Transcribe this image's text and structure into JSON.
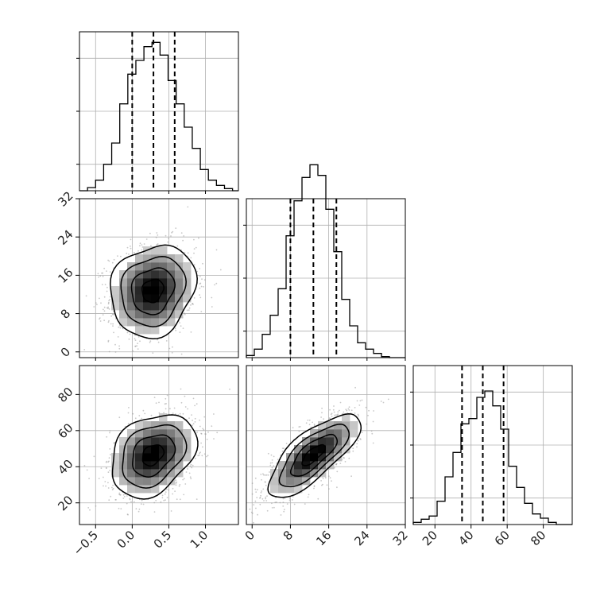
{
  "chart_data": {
    "type": "corner",
    "grid": true,
    "parameters": [
      {
        "range": [
          -0.72,
          1.45
        ],
        "ticks": [
          -0.5,
          0.0,
          0.5,
          1.0
        ],
        "tick_labels": [
          "−0.5",
          "0.0",
          "0.5",
          "1.0"
        ],
        "quantiles": [
          0.0,
          0.29,
          0.58
        ],
        "hist_bins_edges": [
          -0.72,
          -0.61,
          -0.5,
          -0.39,
          -0.28,
          -0.17,
          -0.06,
          0.05,
          0.16,
          0.27,
          0.38,
          0.49,
          0.6,
          0.71,
          0.82,
          0.93,
          1.04,
          1.15,
          1.26,
          1.37,
          1.45
        ],
        "hist_counts": [
          0,
          3,
          10,
          25,
          45,
          82,
          110,
          123,
          136,
          140,
          128,
          104,
          82,
          60,
          40,
          20,
          10,
          5,
          2,
          0
        ]
      },
      {
        "range": [
          -1.2,
          32.0
        ],
        "ticks": [
          0,
          8,
          16,
          24,
          32
        ],
        "tick_labels": [
          "0",
          "8",
          "16",
          "24",
          "32"
        ],
        "quantiles": [
          8.0,
          12.8,
          17.6
        ],
        "hist_bins_edges": [
          -1.2,
          0.46,
          2.12,
          3.78,
          5.44,
          7.1,
          8.76,
          10.42,
          12.08,
          13.74,
          15.4,
          17.06,
          18.72,
          20.38,
          22.04,
          23.7,
          25.36,
          27.02,
          28.68,
          30.34,
          32.0
        ],
        "hist_counts": [
          2,
          8,
          22,
          40,
          65,
          115,
          148,
          170,
          182,
          172,
          140,
          100,
          55,
          30,
          14,
          8,
          4,
          1,
          0,
          0
        ]
      },
      {
        "range": [
          8.0,
          96.0
        ],
        "ticks": [
          20,
          40,
          60,
          80
        ],
        "tick_labels": [
          "20",
          "40",
          "60",
          "80"
        ],
        "quantiles": [
          35.0,
          46.5,
          58.0
        ],
        "hist_bins_edges": [
          8.0,
          12.4,
          16.8,
          21.2,
          25.6,
          30.0,
          34.4,
          38.8,
          43.2,
          47.6,
          52.0,
          56.4,
          60.8,
          65.2,
          69.6,
          74.0,
          78.4,
          82.8,
          87.2,
          91.6,
          96.0
        ],
        "hist_counts": [
          2,
          5,
          8,
          22,
          45,
          68,
          95,
          100,
          120,
          126,
          112,
          90,
          55,
          35,
          20,
          10,
          6,
          2,
          0,
          0
        ]
      }
    ],
    "hist_ylim": [
      0,
      150
    ],
    "hist_y_ticks": [
      25,
      75,
      125
    ],
    "pairs": [
      {
        "x": 0,
        "y": 1,
        "mean": [
          0.28,
          12.8
        ],
        "sigma": [
          0.29,
          4.8
        ],
        "rho": 0.15,
        "contour_sigmas": [
          0.5,
          1.0,
          1.5,
          2.0
        ]
      },
      {
        "x": 0,
        "y": 2,
        "mean": [
          0.28,
          46.5
        ],
        "sigma": [
          0.29,
          11.5
        ],
        "rho": 0.3,
        "contour_sigmas": [
          0.5,
          1.0,
          1.5,
          2.0
        ]
      },
      {
        "x": 1,
        "y": 2,
        "mean": [
          12.8,
          46.5
        ],
        "sigma": [
          4.8,
          11.5
        ],
        "rho": 0.75,
        "contour_sigmas": [
          0.5,
          1.0,
          1.5,
          2.0
        ]
      }
    ]
  }
}
